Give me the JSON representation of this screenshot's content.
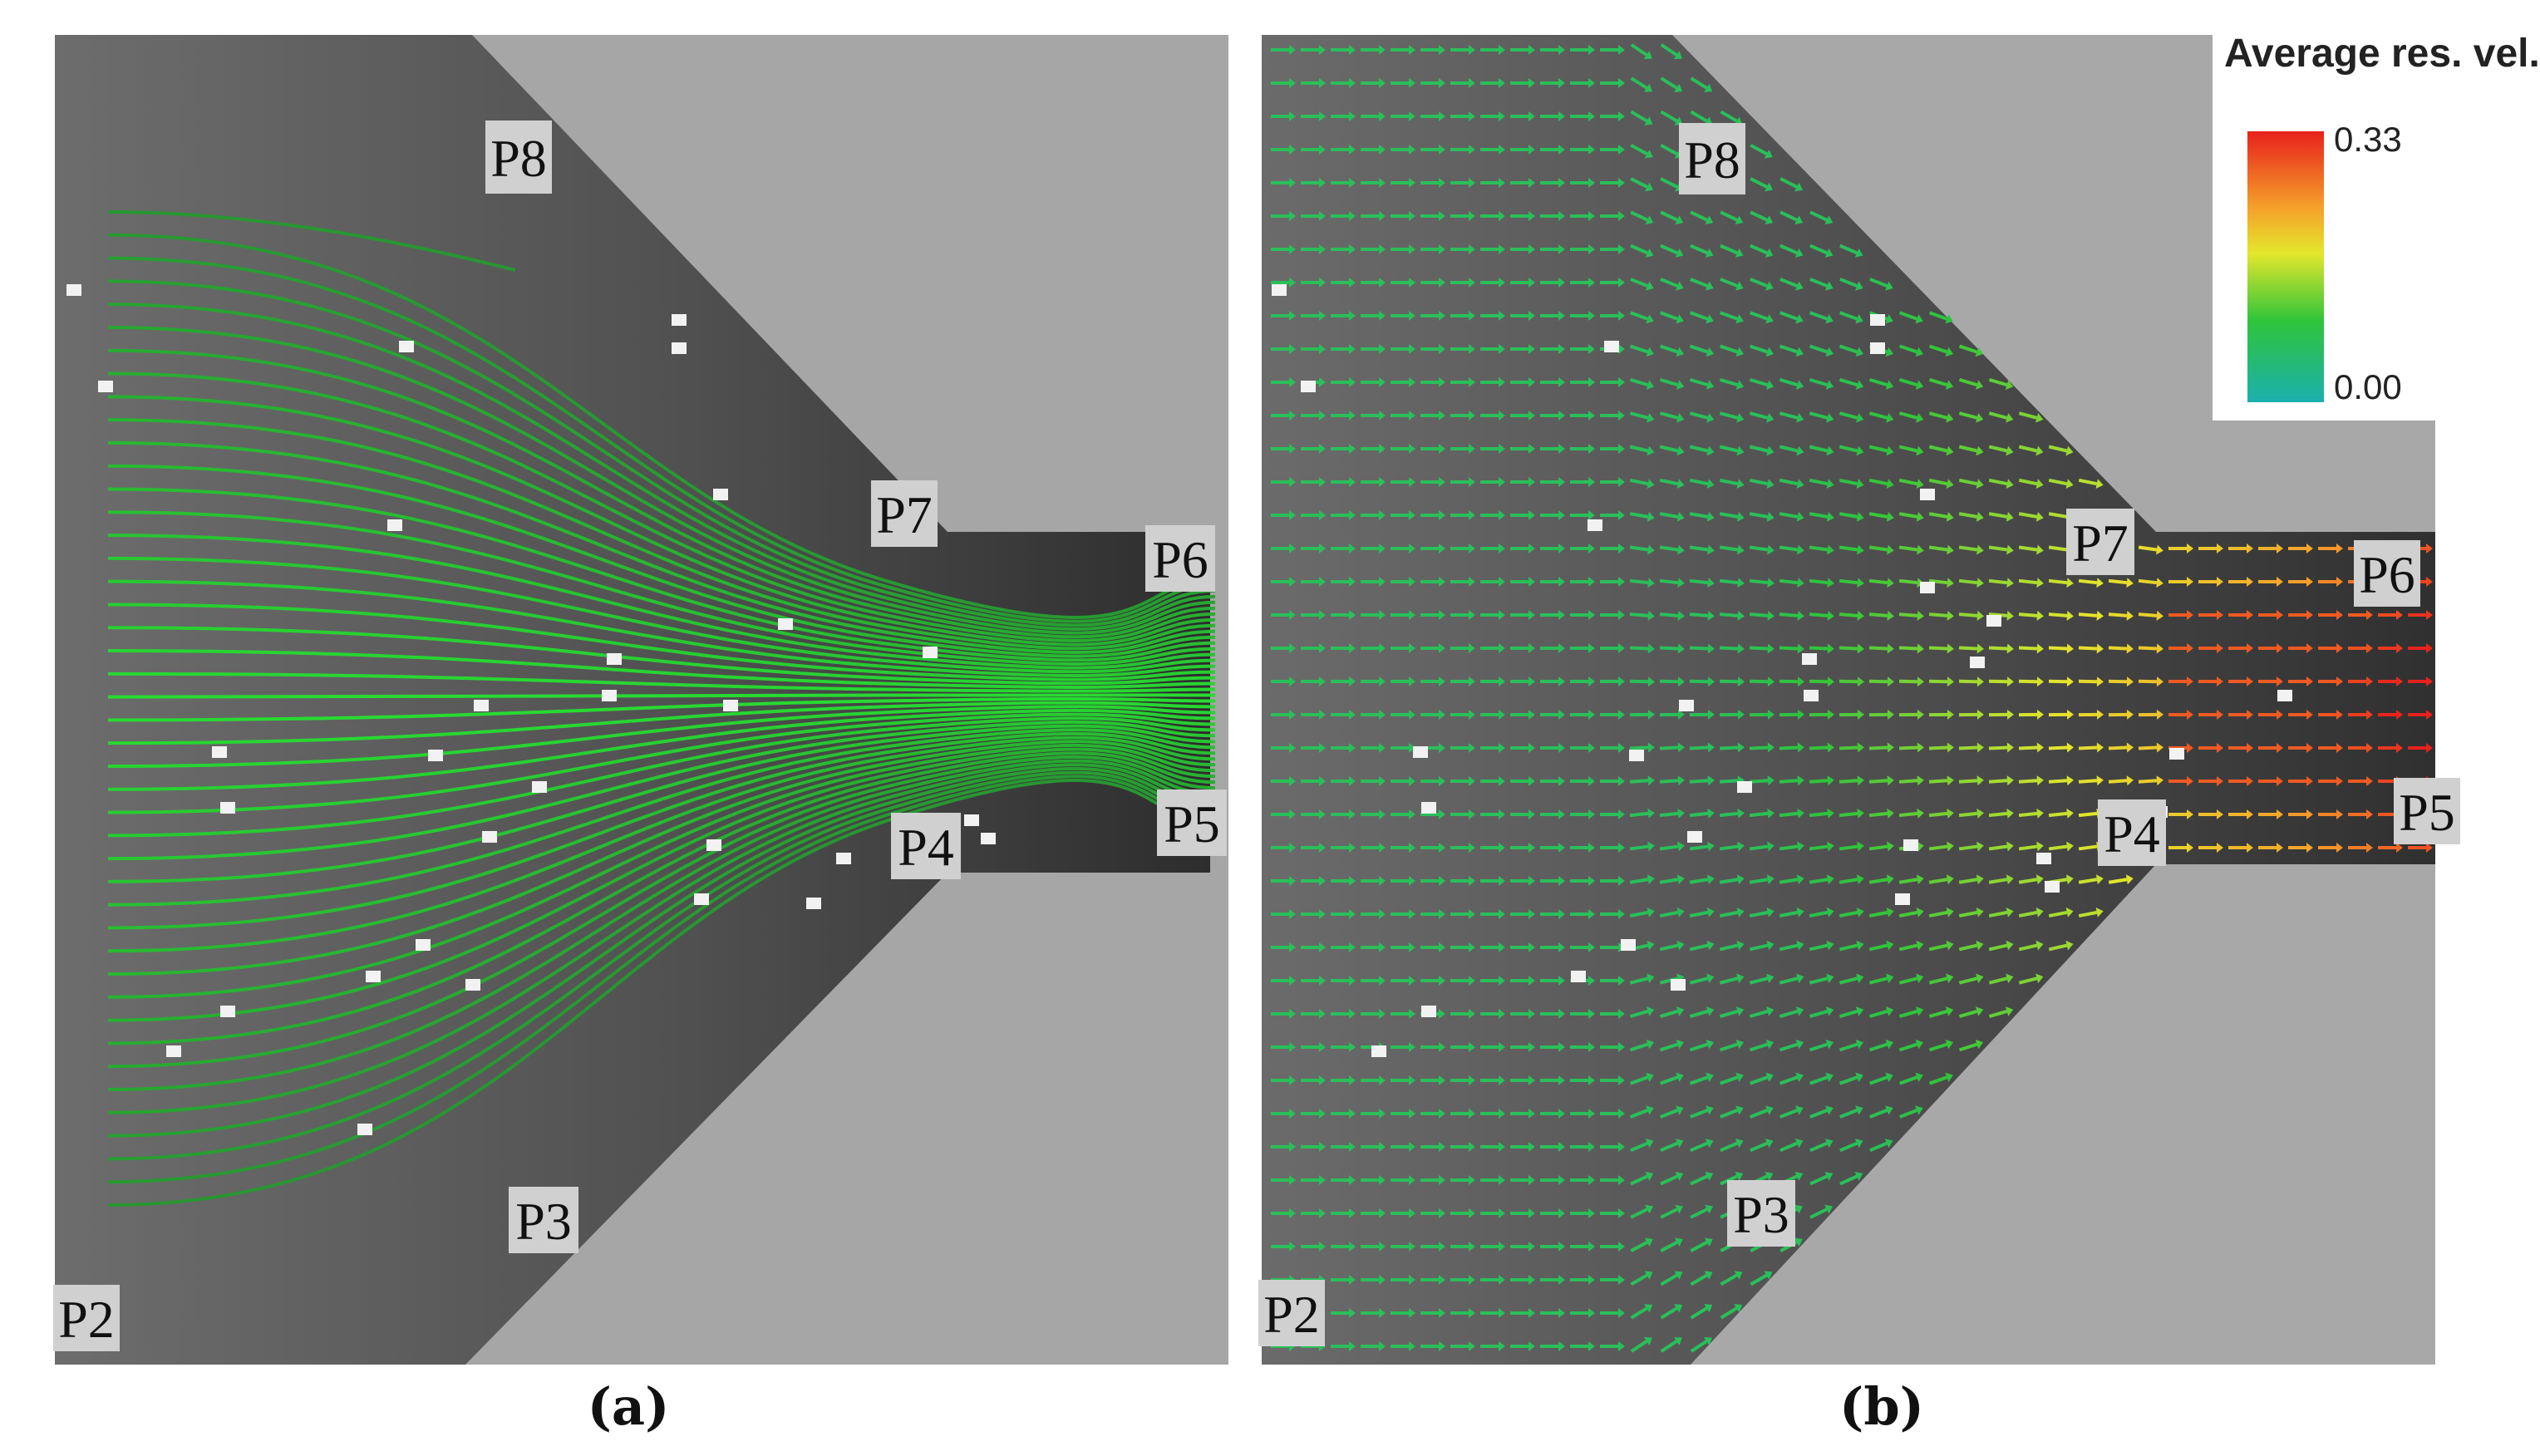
{
  "panel_a": {
    "caption": "(a)",
    "labels": {
      "p2": "P2",
      "p3": "P3",
      "p4": "P4",
      "p5": "P5",
      "p6": "P6",
      "p7": "P7",
      "p8": "P8"
    }
  },
  "panel_b": {
    "caption": "(b)",
    "labels": {
      "p2": "P2",
      "p3": "P3",
      "p4": "P4",
      "p5": "P5",
      "p6": "P6",
      "p7": "P7",
      "p8": "P8"
    }
  },
  "legend": {
    "title": "Average res. vel..",
    "max_label": "0.33",
    "min_label": "0.00",
    "colors": [
      "#e8201c",
      "#f5a02a",
      "#e4e62c",
      "#2fc43a",
      "#1bb0ae"
    ]
  }
}
